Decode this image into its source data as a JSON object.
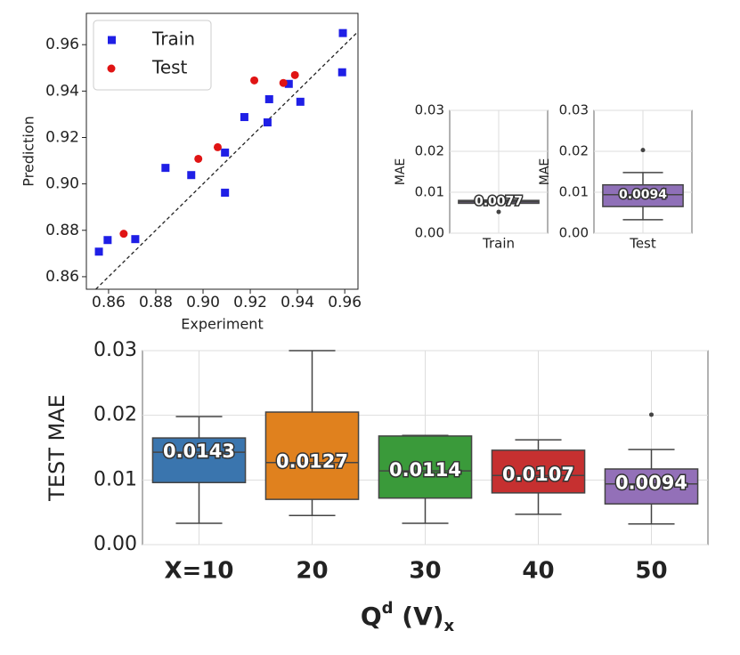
{
  "chart_data": [
    {
      "type": "scatter",
      "xlabel": "Experiment",
      "ylabel": "Prediction",
      "xlim": [
        0.8506,
        0.9656
      ],
      "ylim": [
        0.8546,
        0.9735
      ],
      "xticks": [
        0.86,
        0.88,
        {
          "value": 0.9,
          "label": "0.90"
        },
        0.92,
        0.94,
        0.96
      ],
      "yticks": [
        0.86,
        0.88,
        {
          "value": 0.9,
          "label": "0.90"
        },
        0.92,
        0.94,
        0.96
      ],
      "legend": "upper left",
      "identity_line": true,
      "grid": false,
      "series": [
        {
          "name": "Train",
          "color": "#1f1fe6",
          "marker": "square",
          "x": [
            0.8559,
            0.8596,
            0.8713,
            0.8841,
            0.895,
            0.9093,
            0.9093,
            0.9175,
            0.928,
            0.9273,
            0.9363,
            0.9412,
            0.9592,
            0.9589
          ],
          "values": [
            0.8708,
            0.8758,
            0.8762,
            0.9069,
            0.9038,
            0.9135,
            0.8962,
            0.9288,
            0.9365,
            0.9265,
            0.9431,
            0.9354,
            0.965,
            0.9481
          ]
        },
        {
          "name": "Test",
          "color": "#e01414",
          "marker": "circle",
          "x": [
            0.8664,
            0.898,
            0.9062,
            0.9217,
            0.934,
            0.9389
          ],
          "values": [
            0.8785,
            0.9108,
            0.9158,
            0.9446,
            0.9435,
            0.9469
          ]
        }
      ]
    },
    {
      "type": "box",
      "ylabel": "MAE",
      "categories": [
        "Train"
      ],
      "colors": [
        "#8470a8"
      ],
      "ylim": [
        0,
        0.03
      ],
      "yticks": [
        {
          "value": 0,
          "label": "0.00"
        },
        0.01,
        0.02,
        0.03
      ],
      "grid": true,
      "medians": [
        0.0077
      ],
      "q1": [
        0.0073
      ],
      "q3": [
        0.008
      ],
      "whislo": [
        0.0072
      ],
      "whishi": [
        0.0081
      ],
      "fliers": [
        [
          0.0052
        ]
      ]
    },
    {
      "type": "box",
      "ylabel": "MAE",
      "categories": [
        "Test"
      ],
      "colors": [
        "#8f70b8"
      ],
      "ylim": [
        0,
        0.03
      ],
      "yticks": [
        {
          "value": 0,
          "label": "0.00"
        },
        0.01,
        0.02,
        0.03
      ],
      "grid": true,
      "medians": [
        0.0094
      ],
      "q1": [
        0.0065
      ],
      "q3": [
        0.0118
      ],
      "whislo": [
        0.0033
      ],
      "whishi": [
        0.0148
      ],
      "fliers": [
        [
          0.0203
        ]
      ]
    },
    {
      "type": "box",
      "ylabel": "TEST MAE",
      "xlabel": [
        "Q",
        "d",
        " (V)",
        "x"
      ],
      "categories": [
        "X=10",
        "20",
        "30",
        "40",
        "50"
      ],
      "colors": [
        "#3a75ae",
        "#e0811e",
        "#3a9a3a",
        "#c63030",
        "#9370b8"
      ],
      "ylim": [
        0,
        0.03
      ],
      "yticks": [
        {
          "value": 0,
          "label": "0.00"
        },
        0.01,
        0.02,
        0.03
      ],
      "grid": true,
      "medians": [
        0.0143,
        0.0127,
        0.0114,
        0.0107,
        0.0094
      ],
      "q1": [
        0.0096,
        0.007,
        0.0072,
        0.008,
        0.0063
      ],
      "q3": [
        0.0165,
        0.0205,
        0.0168,
        0.0146,
        0.0117
      ],
      "whislo": [
        0.0033,
        0.0045,
        0.0033,
        0.0047,
        0.0032
      ],
      "whishi": [
        0.0198,
        0.03,
        0.0169,
        0.0162,
        0.0147
      ],
      "fliers": [
        [],
        [],
        [],
        [],
        [
          0.0201
        ]
      ]
    }
  ]
}
